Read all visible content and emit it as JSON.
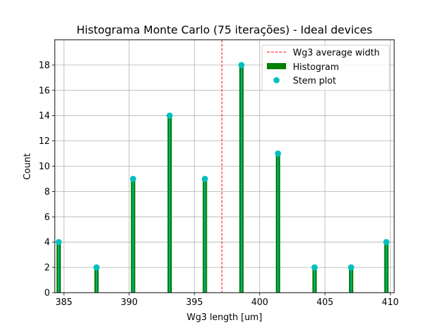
{
  "chart_data": {
    "type": "bar",
    "title": "Histograma Monte Carlo (75 iterações) - Ideal devices",
    "xlabel": "Wg3 length [um]",
    "ylabel": "Count",
    "xlim": [
      384.3,
      410.3
    ],
    "ylim": [
      0,
      20
    ],
    "xticks": [
      385,
      390,
      395,
      400,
      405,
      410
    ],
    "yticks": [
      0,
      2,
      4,
      6,
      8,
      10,
      12,
      14,
      16,
      18
    ],
    "grid": true,
    "histogram": {
      "name": "Histogram",
      "color": "#008000",
      "bin_width": 0.33,
      "x": [
        384.6,
        387.5,
        390.3,
        393.1,
        395.8,
        398.6,
        401.4,
        404.2,
        407.0,
        409.7
      ],
      "values": [
        4,
        2,
        9,
        14,
        9,
        18,
        11,
        2,
        2,
        4
      ]
    },
    "stem": {
      "name": "Stem plot",
      "color": "#00bfbf",
      "x": [
        384.6,
        387.5,
        390.3,
        393.1,
        395.8,
        398.6,
        401.4,
        404.2,
        407.0,
        409.7
      ],
      "values": [
        4,
        2,
        9,
        14,
        9,
        18,
        11,
        2,
        2,
        4
      ]
    },
    "average_line": {
      "name": "Wg3 average width",
      "x": 397.1,
      "color": "#ff0000"
    },
    "legend_position": "top-right",
    "legend": [
      "Wg3 average width",
      "Histogram",
      "Stem plot"
    ]
  }
}
